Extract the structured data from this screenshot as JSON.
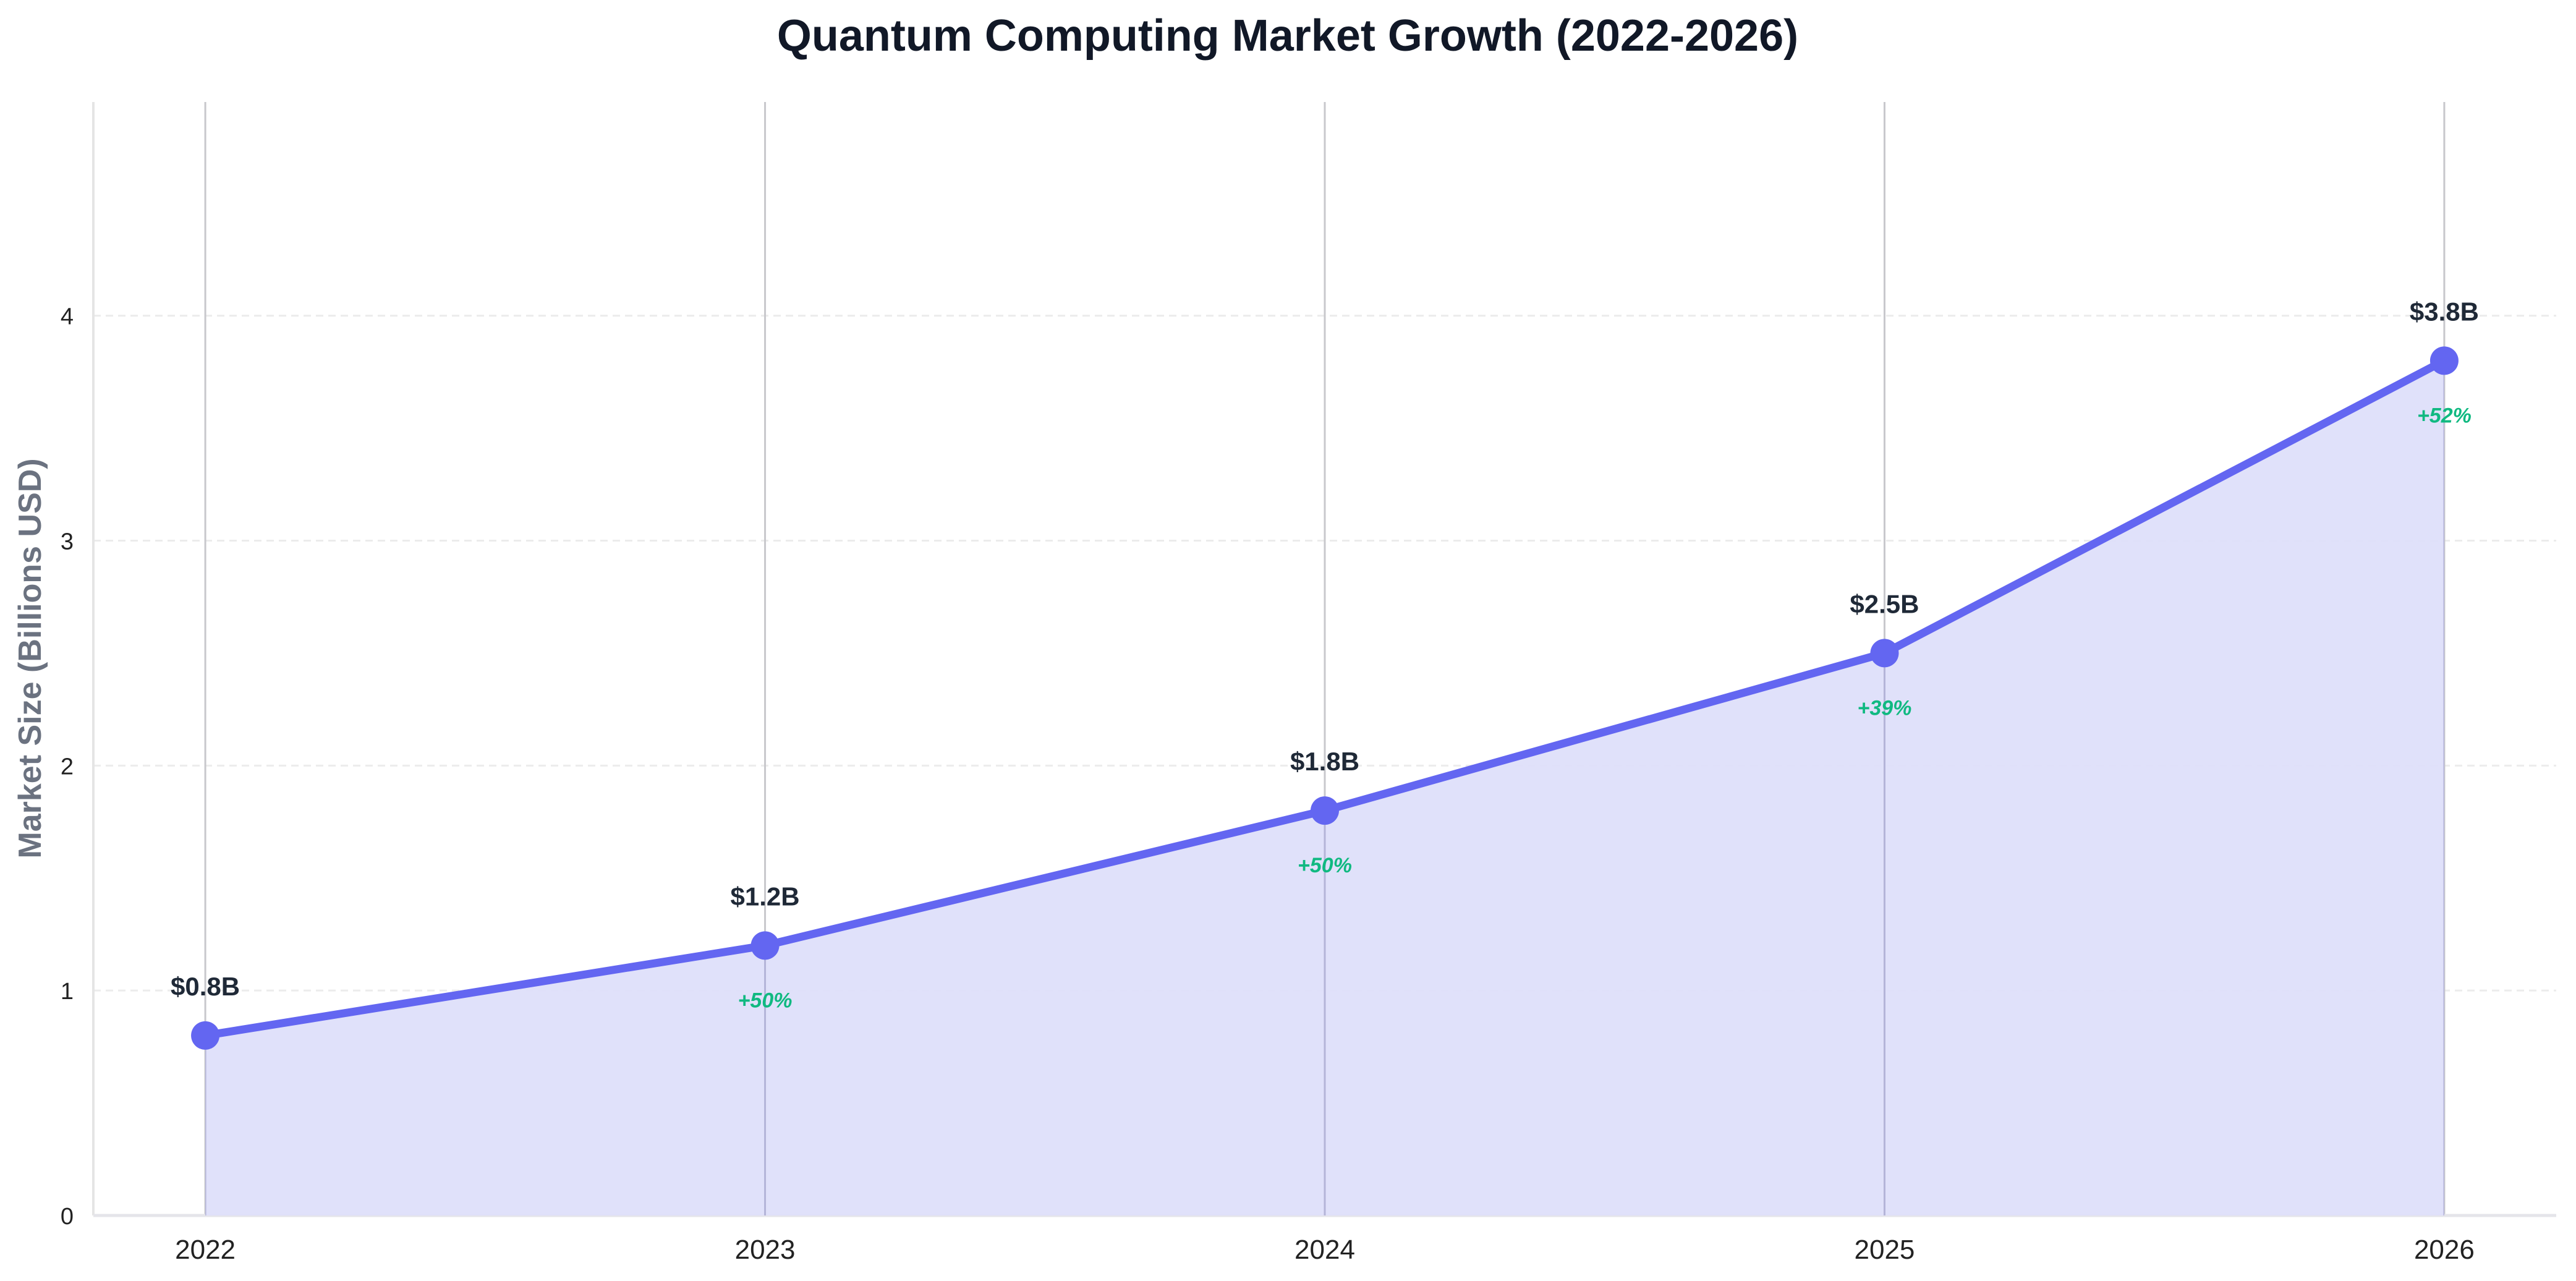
{
  "chart_data": {
    "type": "area",
    "title": "Quantum Computing Market Growth (2022-2026)",
    "xlabel": "",
    "ylabel": "Market Size (Billions USD)",
    "x": [
      2022,
      2023,
      2024,
      2025,
      2026
    ],
    "x_tick_labels": [
      "2022",
      "2023",
      "2024",
      "2025",
      "2026"
    ],
    "y_ticks": [
      0,
      1,
      2,
      3,
      4
    ],
    "y_tick_labels": [
      "0",
      "1",
      "2",
      "3",
      "4"
    ],
    "ylim": [
      0,
      4.95
    ],
    "xlim": [
      2021.8,
      2026.2
    ],
    "series": [
      {
        "values": [
          0.8,
          1.2,
          1.8,
          2.5,
          3.8
        ],
        "data_labels": [
          "$0.8B",
          "$1.2B",
          "$1.8B",
          "$2.5B",
          "$3.8B"
        ],
        "growth_labels": [
          "",
          "+50%",
          "+50%",
          "+39%",
          "+52%"
        ]
      }
    ],
    "grid": {
      "horizontal": "dashed",
      "vertical": "solid at each year"
    },
    "colors": {
      "line": "#6366f1",
      "fill": "#dedffa",
      "growth": "#10b981",
      "label": "#1f2937",
      "title": "#111827",
      "ylabel": "#6b7280"
    }
  }
}
